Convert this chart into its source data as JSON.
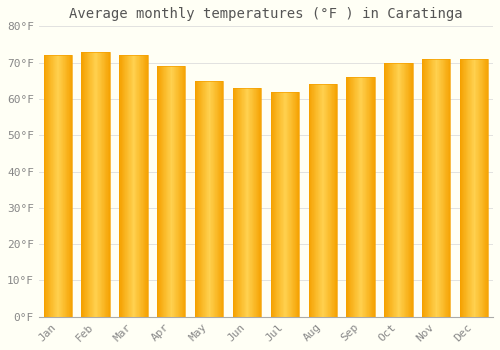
{
  "title": "Average monthly temperatures (°F ) in Caratinga",
  "months": [
    "Jan",
    "Feb",
    "Mar",
    "Apr",
    "May",
    "Jun",
    "Jul",
    "Aug",
    "Sep",
    "Oct",
    "Nov",
    "Dec"
  ],
  "values": [
    72,
    73,
    72,
    69,
    65,
    63,
    62,
    64,
    66,
    70,
    71,
    71
  ],
  "ylim": [
    0,
    80
  ],
  "yticks": [
    0,
    10,
    20,
    30,
    40,
    50,
    60,
    70,
    80
  ],
  "ytick_labels": [
    "0°F",
    "10°F",
    "20°F",
    "30°F",
    "40°F",
    "50°F",
    "60°F",
    "70°F",
    "80°F"
  ],
  "bar_color_center": "#FFD050",
  "bar_color_edge": "#F5A000",
  "background_color": "#FFFFF5",
  "grid_color": "#DDDDDD",
  "title_fontsize": 10,
  "tick_fontsize": 8,
  "title_color": "#555555",
  "tick_color": "#888888",
  "bar_width": 0.75,
  "n_gradient_steps": 50
}
